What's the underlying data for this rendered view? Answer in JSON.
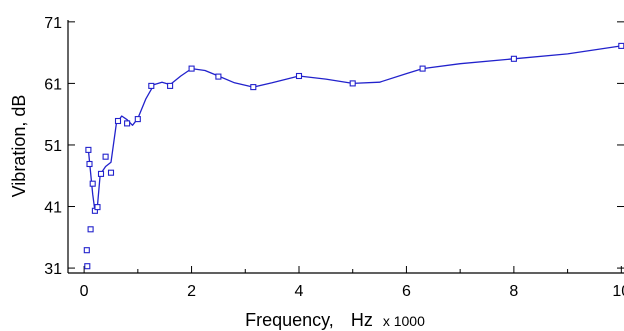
{
  "chart_data": {
    "type": "line",
    "title": "",
    "xlabel": "Frequency,",
    "xunit": "Hz",
    "xunit_scale": "x 1000",
    "ylabel": "Vibration, dB",
    "xlim": [
      -0.3,
      10.05
    ],
    "ylim": [
      30.2,
      71.3
    ],
    "xticks": [
      0,
      2,
      4,
      6,
      8,
      10
    ],
    "yticks": [
      31,
      41,
      51,
      61,
      71
    ],
    "grid": false,
    "series": [
      {
        "color": "#2222cc",
        "marker": "square",
        "points": [
          {
            "x": 0.05,
            "y": 33.9
          },
          {
            "x": 0.06,
            "y": 31.3
          },
          {
            "x": 0.08,
            "y": 50.2
          },
          {
            "x": 0.1,
            "y": 47.9
          },
          {
            "x": 0.12,
            "y": 37.3
          },
          {
            "x": 0.16,
            "y": 44.7
          },
          {
            "x": 0.2,
            "y": 40.3
          },
          {
            "x": 0.25,
            "y": 40.9
          },
          {
            "x": 0.315,
            "y": 46.3
          },
          {
            "x": 0.4,
            "y": 49.1
          },
          {
            "x": 0.5,
            "y": 46.5
          },
          {
            "x": 0.63,
            "y": 54.9
          },
          {
            "x": 0.8,
            "y": 54.5
          },
          {
            "x": 1.0,
            "y": 55.2
          },
          {
            "x": 1.25,
            "y": 60.6
          },
          {
            "x": 1.6,
            "y": 60.6
          },
          {
            "x": 2.0,
            "y": 63.4
          },
          {
            "x": 2.5,
            "y": 62.1
          },
          {
            "x": 3.15,
            "y": 60.4
          },
          {
            "x": 4.0,
            "y": 62.2
          },
          {
            "x": 5.0,
            "y": 61.0
          },
          {
            "x": 6.3,
            "y": 63.4
          },
          {
            "x": 8.0,
            "y": 65.0
          },
          {
            "x": 10.0,
            "y": 67.1
          }
        ],
        "curve": [
          [
            0.08,
            50.2
          ],
          [
            0.12,
            46.5
          ],
          [
            0.16,
            43.0
          ],
          [
            0.2,
            40.3
          ],
          [
            0.25,
            41.2
          ],
          [
            0.3,
            46.2
          ],
          [
            0.4,
            47.5
          ],
          [
            0.5,
            48.2
          ],
          [
            0.6,
            54.4
          ],
          [
            0.7,
            55.7
          ],
          [
            0.8,
            55.1
          ],
          [
            0.9,
            54.2
          ],
          [
            1.0,
            55.3
          ],
          [
            1.15,
            58.5
          ],
          [
            1.3,
            60.8
          ],
          [
            1.45,
            61.2
          ],
          [
            1.6,
            60.8
          ],
          [
            1.8,
            62.2
          ],
          [
            2.0,
            63.4
          ],
          [
            2.25,
            63.1
          ],
          [
            2.5,
            62.2
          ],
          [
            2.8,
            61.1
          ],
          [
            3.15,
            60.4
          ],
          [
            3.5,
            61.1
          ],
          [
            4.0,
            62.2
          ],
          [
            4.5,
            61.7
          ],
          [
            5.0,
            61.0
          ],
          [
            5.5,
            61.2
          ],
          [
            6.0,
            62.6
          ],
          [
            6.3,
            63.4
          ],
          [
            7.0,
            64.2
          ],
          [
            8.0,
            65.0
          ],
          [
            9.0,
            65.8
          ],
          [
            10.0,
            67.1
          ]
        ]
      }
    ]
  }
}
